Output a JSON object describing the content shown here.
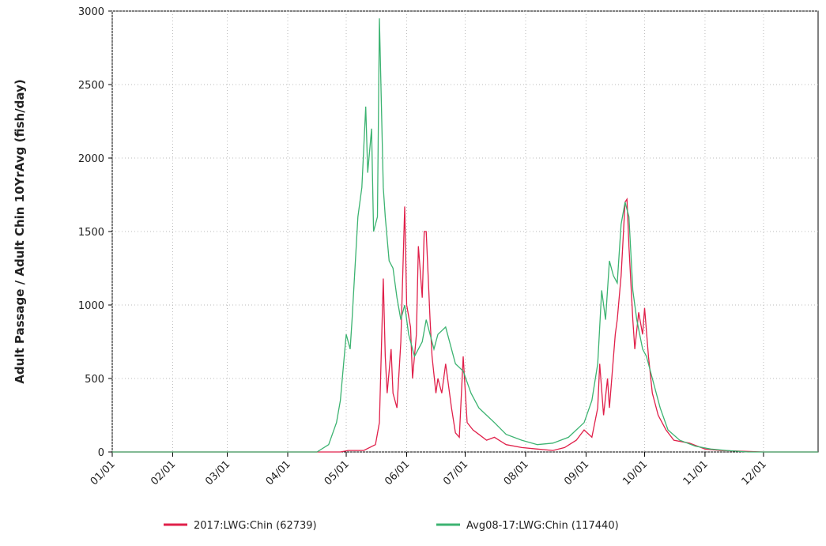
{
  "chart_data": {
    "type": "line",
    "y_label": "Adult Passage / Adult Chin 10YrAvg (fish/day)",
    "xlim": [
      1,
      363
    ],
    "ylim": [
      0,
      3000
    ],
    "xticks": [
      {
        "value": 1,
        "label": "01/01"
      },
      {
        "value": 32,
        "label": "02/01"
      },
      {
        "value": 60,
        "label": "03/01"
      },
      {
        "value": 91,
        "label": "04/01"
      },
      {
        "value": 121,
        "label": "05/01"
      },
      {
        "value": 152,
        "label": "06/01"
      },
      {
        "value": 182,
        "label": "07/01"
      },
      {
        "value": 213,
        "label": "08/01"
      },
      {
        "value": 244,
        "label": "09/01"
      },
      {
        "value": 274,
        "label": "10/01"
      },
      {
        "value": 305,
        "label": "11/01"
      },
      {
        "value": 335,
        "label": "12/01"
      }
    ],
    "yticks": [
      0,
      500,
      1000,
      1500,
      2000,
      2500,
      3000
    ],
    "grid": true,
    "series": [
      {
        "name": "2017:LWG:Chin (62739)",
        "color": "#e0204a",
        "x": [
          1,
          118,
          122,
          130,
          136,
          138,
          140,
          141,
          142,
          144,
          145,
          147,
          149,
          151,
          152,
          154,
          155,
          157,
          158,
          160,
          161,
          162,
          164,
          165,
          167,
          168,
          170,
          172,
          175,
          177,
          179,
          181,
          183,
          186,
          189,
          193,
          197,
          203,
          211,
          219,
          227,
          233,
          239,
          243,
          247,
          250,
          251,
          253,
          255,
          256,
          259,
          260,
          262,
          264,
          265,
          266,
          268,
          269,
          271,
          273,
          274,
          276,
          278,
          281,
          285,
          289,
          297,
          305,
          313,
          325,
          335,
          363
        ],
        "values": [
          0,
          0,
          10,
          10,
          50,
          200,
          1180,
          650,
          400,
          700,
          400,
          300,
          750,
          1670,
          1000,
          850,
          500,
          800,
          1400,
          1050,
          1500,
          1500,
          900,
          650,
          400,
          500,
          400,
          600,
          300,
          130,
          100,
          650,
          200,
          150,
          120,
          80,
          100,
          50,
          30,
          20,
          10,
          30,
          80,
          150,
          100,
          300,
          600,
          250,
          500,
          300,
          800,
          900,
          1200,
          1700,
          1720,
          1400,
          900,
          700,
          950,
          800,
          980,
          650,
          400,
          250,
          150,
          80,
          60,
          20,
          10,
          5,
          0,
          0
        ]
      },
      {
        "name": "Avg08-17:LWG:Chin (117440)",
        "color": "#3cb371",
        "x": [
          1,
          106,
          112,
          116,
          118,
          121,
          123,
          124,
          127,
          129,
          131,
          132,
          134,
          135,
          137,
          138,
          140,
          141,
          143,
          145,
          147,
          149,
          151,
          153,
          156,
          160,
          162,
          166,
          168,
          172,
          177,
          181,
          185,
          189,
          193,
          197,
          203,
          211,
          219,
          227,
          235,
          243,
          247,
          250,
          252,
          254,
          256,
          258,
          260,
          262,
          264,
          266,
          268,
          270,
          273,
          275,
          278,
          282,
          286,
          292,
          300,
          308,
          316,
          327,
          363
        ],
        "values": [
          0,
          0,
          50,
          200,
          350,
          800,
          700,
          900,
          1600,
          1800,
          2350,
          1900,
          2200,
          1500,
          1600,
          2950,
          1800,
          1600,
          1300,
          1250,
          1050,
          900,
          1000,
          800,
          650,
          750,
          900,
          700,
          800,
          850,
          600,
          550,
          400,
          300,
          250,
          200,
          120,
          80,
          50,
          60,
          100,
          200,
          350,
          600,
          1100,
          900,
          1300,
          1200,
          1150,
          1550,
          1700,
          1600,
          1100,
          900,
          700,
          650,
          500,
          300,
          150,
          80,
          40,
          20,
          10,
          0,
          0
        ]
      }
    ]
  }
}
